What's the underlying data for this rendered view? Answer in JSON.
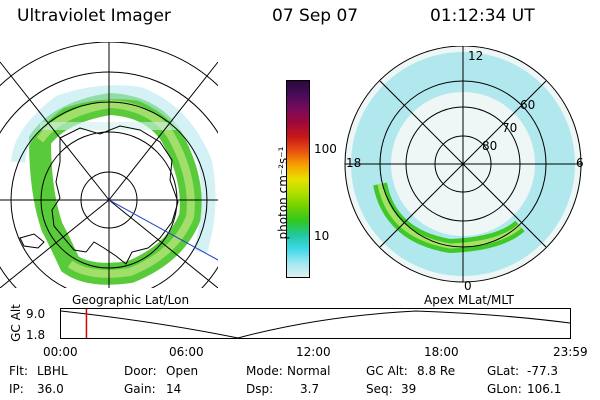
{
  "header": {
    "title": "Ultraviolet Imager",
    "date": "07 Sep 07",
    "time": "01:12:34 UT"
  },
  "left_panel": {
    "label": "Geographic Lat/Lon"
  },
  "right_panel": {
    "label": "Apex MLat/MLT",
    "mlt_labels": [
      "12",
      "18",
      "6",
      "0"
    ],
    "lat_labels": [
      "60",
      "70",
      "80"
    ]
  },
  "colorbar": {
    "unit_label": "photon cm⁻²s⁻¹",
    "tick_labels": [
      "100",
      "10"
    ],
    "colors": [
      "#2a0a3a",
      "#4a0a5a",
      "#7a0a5a",
      "#a0083a",
      "#c81818",
      "#e85010",
      "#f8a000",
      "#e8e000",
      "#b0e000",
      "#70d000",
      "#30c820",
      "#20c8a0",
      "#40d8e8",
      "#a0e8f0",
      "#e0f0f0"
    ]
  },
  "timeline": {
    "y_axis_label": "GC Alt",
    "y_ticks": [
      "9.0",
      "1.8"
    ],
    "x_ticks": [
      "00:00",
      "06:00",
      "12:00",
      "18:00",
      "23:59"
    ],
    "marker_time": "01:12",
    "marker_color": "#e00000"
  },
  "info": {
    "flt_label": "Flt:",
    "flt_value": "LBHL",
    "door_label": "Door:",
    "door_value": "Open",
    "mode_label": "Mode:",
    "mode_value": "Normal",
    "gcalt_label": "GC Alt:",
    "gcalt_value": "8.8 Re",
    "glat_label": "GLat:",
    "glat_value": "-77.3",
    "ip_label": "IP:",
    "ip_value": "36.0",
    "gain_label": "Gain:",
    "gain_value": "14",
    "dsp_label": "Dsp:",
    "dsp_value": "3.7",
    "seq_label": "Seq:",
    "seq_value": "39",
    "glon_label": "GLon:",
    "glon_value": "106.1"
  }
}
